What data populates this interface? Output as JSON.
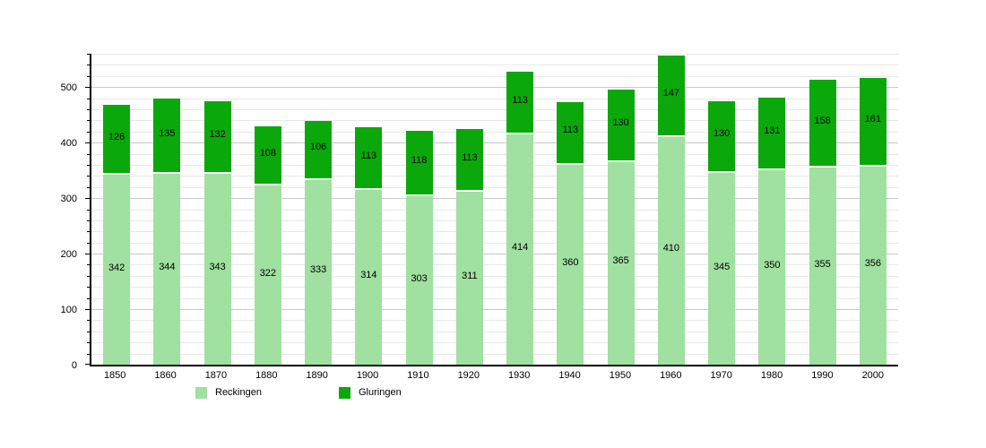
{
  "chart_data": {
    "type": "bar",
    "stacked": true,
    "title": "",
    "categories": [
      "1850",
      "1860",
      "1870",
      "1880",
      "1890",
      "1900",
      "1910",
      "1920",
      "1930",
      "1940",
      "1950",
      "1960",
      "1970",
      "1980",
      "1990",
      "2000"
    ],
    "series": [
      {
        "name": "Reckingen",
        "color": "#A0E0A0",
        "values": [
          342,
          344,
          343,
          322,
          333,
          314,
          303,
          311,
          414,
          360,
          365,
          410,
          345,
          350,
          355,
          356
        ]
      },
      {
        "name": "Gluringen",
        "color": "#0BA80B",
        "values": [
          126,
          135,
          132,
          108,
          106,
          113,
          118,
          113,
          113,
          113,
          130,
          147,
          130,
          131,
          158,
          161
        ]
      }
    ],
    "xlabel": "",
    "ylabel": "",
    "ylim": [
      0,
      560
    ],
    "y_major_step": 100,
    "y_minor_step": 20,
    "y_major_tick_labels": [
      "0",
      "100",
      "200",
      "300",
      "400",
      "500"
    ],
    "grid": true,
    "bar_value_labels": true,
    "legend_position": "bottom",
    "legend_items": [
      {
        "label": "Reckingen",
        "color": "#A0E0A0"
      },
      {
        "label": "Gluringen",
        "color": "#0BA80B"
      }
    ]
  },
  "colors": {
    "background": "#FFFFFF",
    "axis": "#000000",
    "gridline_minor": "#E8E8E8",
    "gridline_major": "#C9C9C9",
    "label_text": "#000000"
  }
}
